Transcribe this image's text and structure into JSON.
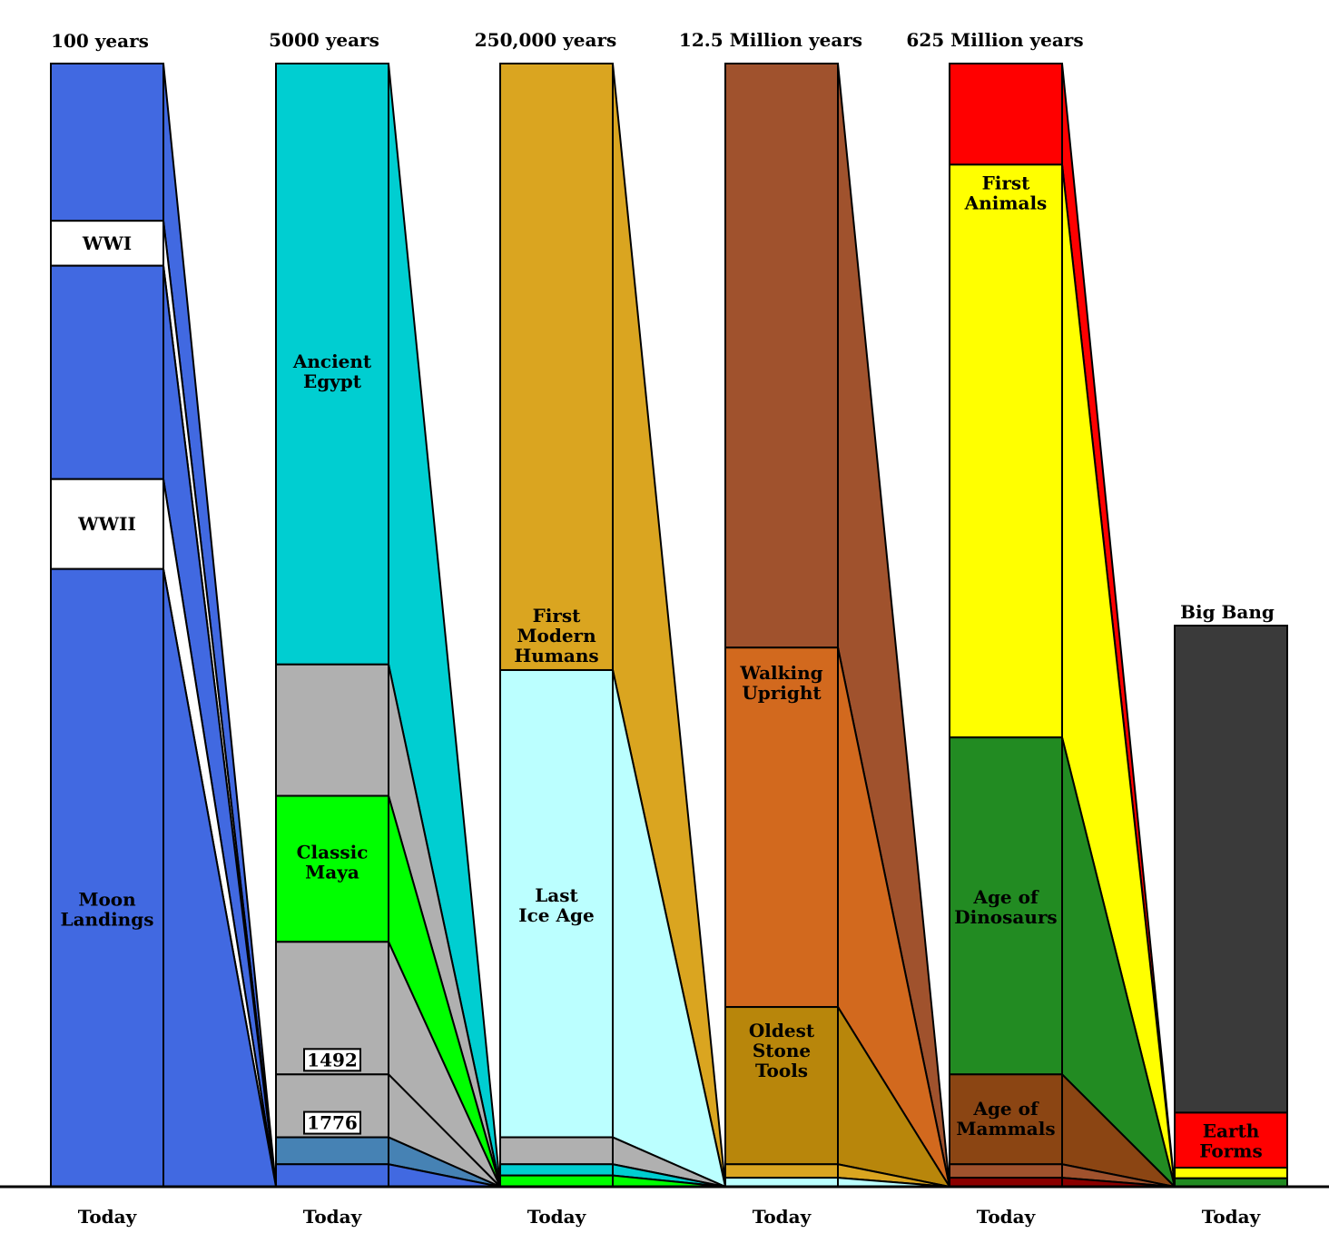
{
  "columns": [
    {
      "title": "100 years",
      "bottom_label": "Today",
      "segments": [
        {
          "to": 0.14,
          "color": "#4169E1",
          "label": ""
        },
        {
          "to": 0.18,
          "color": "#FFFFFF",
          "label": "WWI",
          "boxed": false
        },
        {
          "to": 0.37,
          "color": "#4169E1",
          "label": ""
        },
        {
          "to": 0.45,
          "color": "#FFFFFF",
          "label": "WWII",
          "boxed": false
        },
        {
          "to": 1.0,
          "color": "#4169E1",
          "label": "Moon\nLandings"
        }
      ]
    },
    {
      "title": "5000 years",
      "bottom_label": "Today",
      "segments": [
        {
          "to": 0.535,
          "color": "#00CED1",
          "label": "Ancient\nEgypt"
        },
        {
          "to": 0.652,
          "color": "#B0B0B0",
          "label": ""
        },
        {
          "to": 0.782,
          "color": "#00FF00",
          "label": "Classic\nMaya"
        },
        {
          "to": 0.9,
          "color": "#B0B0B0",
          "label": "1492",
          "marker": true
        },
        {
          "to": 0.956,
          "color": "#B0B0B0",
          "label": "1776",
          "marker": true
        },
        {
          "to": 0.98,
          "color": "#4682B4",
          "label": ""
        },
        {
          "to": 1.0,
          "color": "#4169E1",
          "label": ""
        }
      ]
    },
    {
      "title": "250,000 years",
      "bottom_label": "Today",
      "segments": [
        {
          "to": 0.54,
          "color": "#DAA520",
          "label": "First\nModern\nHumans"
        },
        {
          "to": 0.956,
          "color": "#BBFFFF",
          "label": "Last\nIce Age"
        },
        {
          "to": 0.98,
          "color": "#B0B0B0",
          "label": ""
        },
        {
          "to": 0.99,
          "color": "#00CED1",
          "label": ""
        },
        {
          "to": 1.0,
          "color": "#00FF00",
          "label": ""
        }
      ]
    },
    {
      "title": "12.5 Million years",
      "bottom_label": "Today",
      "segments": [
        {
          "to": 0.52,
          "color": "#A0522D",
          "label": "Walking\nUpright"
        },
        {
          "to": 0.84,
          "color": "#D2691E",
          "label": "Oldest\nStone\nTools"
        },
        {
          "to": 0.98,
          "color": "#B8860B",
          "label": ""
        },
        {
          "to": 0.992,
          "color": "#DAA520",
          "label": ""
        },
        {
          "to": 1.0,
          "color": "#BBFFFF",
          "label": ""
        }
      ]
    },
    {
      "title": "625 Million years",
      "bottom_label": "Today",
      "segments": [
        {
          "to": 0.09,
          "color": "#FF0000",
          "label": ""
        },
        {
          "to": 0.6,
          "color": "#FFFF00",
          "label": "First\nAnimals"
        },
        {
          "to": 0.9,
          "color": "#228B22",
          "label": "Age of\nDinosaurs"
        },
        {
          "to": 0.98,
          "color": "#8B4513",
          "label": "Age of\nMammals"
        },
        {
          "to": 0.992,
          "color": "#A0522D",
          "label": ""
        },
        {
          "to": 1.0,
          "color": "#8B0000",
          "label": ""
        }
      ]
    },
    {
      "title": "Big Bang",
      "bottom_label": "Today",
      "segments": [
        {
          "to": 0.868,
          "color": "#3A3A3A",
          "label": ""
        },
        {
          "to": 0.966,
          "color": "#FF0000",
          "label": "Earth\nForms"
        },
        {
          "to": 0.985,
          "color": "#FFFF00",
          "label": ""
        },
        {
          "to": 1.0,
          "color": "#228B22",
          "label": ""
        }
      ]
    }
  ],
  "colors": {
    "outline": "#000000",
    "background": "#FFFFFF"
  }
}
